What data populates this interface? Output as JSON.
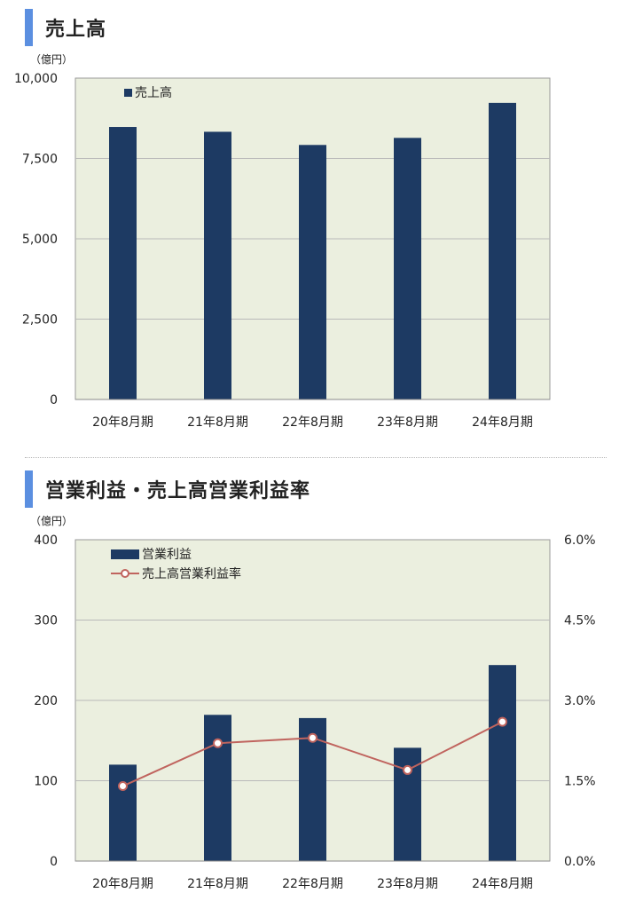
{
  "section1": {
    "heading": "売上高"
  },
  "section2": {
    "heading": "営業利益・売上高営業利益率"
  },
  "colors": {
    "bar": "#1d3a63",
    "line": "#c0645e",
    "plot_bg": "#ebefdf",
    "grid": "#b9b9b9",
    "heading_accent": "#5b8fe0"
  },
  "chart_data": [
    {
      "type": "bar",
      "unit_label": "（億円）",
      "categories": [
        "20年8月期",
        "21年8月期",
        "22年8月期",
        "23年8月期",
        "24年8月期"
      ],
      "series": [
        {
          "name": "売上高",
          "values": [
            8480,
            8330,
            7920,
            8140,
            9230
          ]
        }
      ],
      "ylim": [
        0,
        10000
      ],
      "yticks": [
        0,
        2500,
        5000,
        7500,
        10000
      ],
      "ytick_labels": [
        "0",
        "2,500",
        "5,000",
        "7,500",
        "10,000"
      ],
      "grid": true,
      "legend": "top-left"
    },
    {
      "type": "bar+line",
      "unit_label": "（億円）",
      "categories": [
        "20年8月期",
        "21年8月期",
        "22年8月期",
        "23年8月期",
        "24年8月期"
      ],
      "series": [
        {
          "name": "営業利益",
          "type": "bar",
          "axis": "left",
          "values": [
            120,
            182,
            178,
            141,
            244
          ]
        },
        {
          "name": "売上高営業利益率",
          "type": "line",
          "axis": "right",
          "values": [
            1.4,
            2.2,
            2.3,
            1.7,
            2.6
          ]
        }
      ],
      "ylim": [
        0,
        400
      ],
      "yticks": [
        0,
        100,
        200,
        300,
        400
      ],
      "ytick_labels": [
        "0",
        "100",
        "200",
        "300",
        "400"
      ],
      "y2lim": [
        0,
        6.0
      ],
      "y2ticks": [
        0,
        1.5,
        3.0,
        4.5,
        6.0
      ],
      "y2tick_labels": [
        "0.0%",
        "1.5%",
        "3.0%",
        "4.5%",
        "6.0%"
      ],
      "grid": true,
      "legend": "top-left"
    }
  ]
}
